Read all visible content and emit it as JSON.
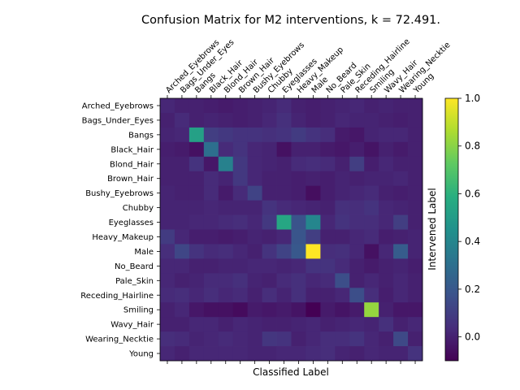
{
  "chart_data": {
    "type": "heatmap",
    "title": "Confusion Matrix for M2 interventions, k = 72.491.",
    "xlabel": "Classified Label",
    "ylabel": "Intervened Label",
    "labels": [
      "Arched_Eyebrows",
      "Bags_Under_Eyes",
      "Bangs",
      "Black_Hair",
      "Blond_Hair",
      "Brown_Hair",
      "Bushy_Eyebrows",
      "Chubby",
      "Eyeglasses",
      "Heavy_Makeup",
      "Male",
      "No_Beard",
      "Pale_Skin",
      "Receding_Hairline",
      "Smiling",
      "Wavy_Hair",
      "Wearing_Necktie",
      "Young"
    ],
    "colorbar": {
      "min": -0.1,
      "max": 1.0,
      "ticks": [
        "0.0",
        "0.2",
        "0.4",
        "0.6",
        "0.8",
        "1.0"
      ],
      "tick_values": [
        0.0,
        0.2,
        0.4,
        0.6,
        0.8,
        1.0
      ],
      "colormap": "viridis"
    },
    "matrix": [
      [
        0.02,
        0.0,
        0.0,
        -0.01,
        -0.02,
        -0.01,
        0.0,
        0.01,
        0.03,
        0.0,
        -0.01,
        0.0,
        0.01,
        0.02,
        0.0,
        0.01,
        0.0,
        0.0
      ],
      [
        0.0,
        0.03,
        0.0,
        0.01,
        0.0,
        -0.01,
        0.0,
        0.02,
        0.05,
        0.01,
        -0.01,
        0.0,
        0.02,
        0.01,
        0.01,
        0.0,
        -0.01,
        0.0
      ],
      [
        0.01,
        0.02,
        0.52,
        0.1,
        0.08,
        0.06,
        0.06,
        0.05,
        0.06,
        0.09,
        0.06,
        0.04,
        -0.02,
        -0.03,
        0.01,
        0.02,
        0.02,
        0.0
      ],
      [
        -0.01,
        -0.02,
        -0.05,
        0.3,
        0.03,
        0.06,
        0.02,
        0.01,
        -0.05,
        0.0,
        0.0,
        -0.02,
        -0.03,
        -0.01,
        -0.04,
        0.0,
        -0.02,
        0.0
      ],
      [
        0.0,
        0.0,
        0.06,
        -0.03,
        0.38,
        0.08,
        0.02,
        0.01,
        0.0,
        0.03,
        0.04,
        0.03,
        0.0,
        0.1,
        -0.01,
        0.02,
        0.0,
        0.0
      ],
      [
        0.0,
        0.0,
        0.0,
        0.03,
        0.01,
        0.08,
        0.02,
        0.0,
        0.0,
        -0.01,
        0.0,
        -0.01,
        0.01,
        0.0,
        0.01,
        0.01,
        0.02,
        0.0
      ],
      [
        0.01,
        0.0,
        0.0,
        0.03,
        -0.02,
        0.03,
        0.12,
        0.0,
        0.0,
        -0.01,
        -0.06,
        -0.01,
        0.01,
        0.02,
        0.03,
        0.0,
        -0.01,
        0.0
      ],
      [
        0.01,
        0.01,
        0.01,
        0.02,
        0.01,
        0.01,
        0.01,
        0.06,
        0.03,
        0.02,
        0.01,
        0.0,
        0.05,
        0.04,
        0.06,
        0.02,
        0.01,
        0.0
      ],
      [
        0.01,
        0.01,
        0.02,
        0.02,
        0.03,
        0.04,
        0.02,
        0.08,
        0.55,
        0.18,
        0.4,
        0.02,
        0.06,
        0.04,
        0.04,
        0.02,
        0.1,
        0.0
      ],
      [
        0.09,
        0.02,
        -0.01,
        -0.01,
        -0.02,
        -0.01,
        0.01,
        0.0,
        0.02,
        0.19,
        0.1,
        0.0,
        0.0,
        0.02,
        0.03,
        -0.01,
        0.0,
        0.01
      ],
      [
        0.04,
        0.13,
        0.06,
        0.03,
        0.04,
        0.02,
        0.0,
        0.06,
        0.12,
        0.2,
        1.0,
        0.04,
        0.05,
        0.02,
        -0.05,
        0.02,
        0.22,
        0.01
      ],
      [
        0.02,
        0.02,
        0.0,
        0.0,
        0.01,
        0.01,
        0.02,
        0.02,
        0.01,
        0.02,
        0.06,
        0.06,
        0.03,
        0.0,
        -0.02,
        0.0,
        0.01,
        -0.01
      ],
      [
        0.02,
        0.0,
        0.01,
        0.03,
        0.03,
        0.05,
        0.01,
        0.0,
        0.03,
        0.05,
        0.02,
        0.03,
        0.16,
        0.0,
        0.02,
        0.0,
        0.02,
        0.0
      ],
      [
        0.03,
        0.04,
        0.02,
        0.04,
        0.02,
        0.03,
        0.0,
        0.04,
        0.01,
        0.05,
        0.0,
        0.0,
        0.02,
        0.16,
        0.04,
        -0.01,
        0.02,
        0.0
      ],
      [
        0.0,
        0.02,
        -0.03,
        -0.05,
        -0.05,
        -0.07,
        -0.02,
        -0.03,
        -0.02,
        -0.04,
        -0.1,
        -0.02,
        -0.04,
        -0.02,
        0.82,
        0.0,
        -0.03,
        -0.03
      ],
      [
        0.0,
        0.0,
        0.02,
        0.02,
        0.0,
        0.02,
        0.01,
        0.0,
        0.0,
        0.01,
        0.02,
        0.0,
        0.01,
        0.02,
        0.01,
        0.05,
        0.0,
        0.02
      ],
      [
        0.04,
        0.03,
        0.01,
        0.02,
        0.03,
        0.02,
        0.01,
        0.07,
        0.06,
        0.0,
        0.02,
        0.04,
        0.04,
        0.06,
        0.02,
        0.0,
        0.14,
        0.0
      ],
      [
        0.02,
        0.0,
        0.02,
        0.02,
        0.02,
        0.02,
        0.01,
        0.01,
        0.02,
        0.02,
        0.03,
        0.04,
        0.01,
        0.0,
        0.02,
        0.01,
        0.01,
        0.06
      ]
    ]
  }
}
